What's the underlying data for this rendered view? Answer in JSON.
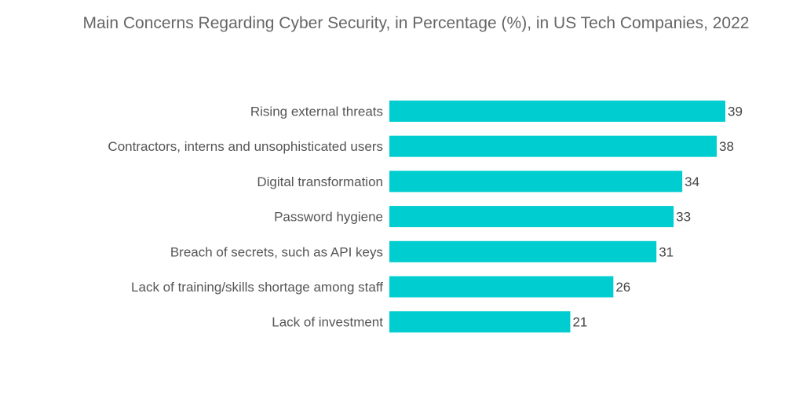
{
  "chart_data": {
    "type": "bar",
    "orientation": "horizontal",
    "title": "Main Concerns Regarding Cyber Security, in Percentage (%), in US Tech Companies, 2022",
    "categories": [
      "Rising external threats",
      "Contractors, interns and unsophisticated users",
      "Digital transformation",
      "Password hygiene",
      "Breach of secrets, such as API keys",
      "Lack of training/skills shortage among staff",
      "Lack of investment"
    ],
    "values": [
      39,
      38,
      34,
      33,
      31,
      26,
      21
    ],
    "xlim": [
      0,
      39
    ],
    "grid": false,
    "legend": "none",
    "bar_color": "#00CDCF",
    "data_labels": true
  }
}
